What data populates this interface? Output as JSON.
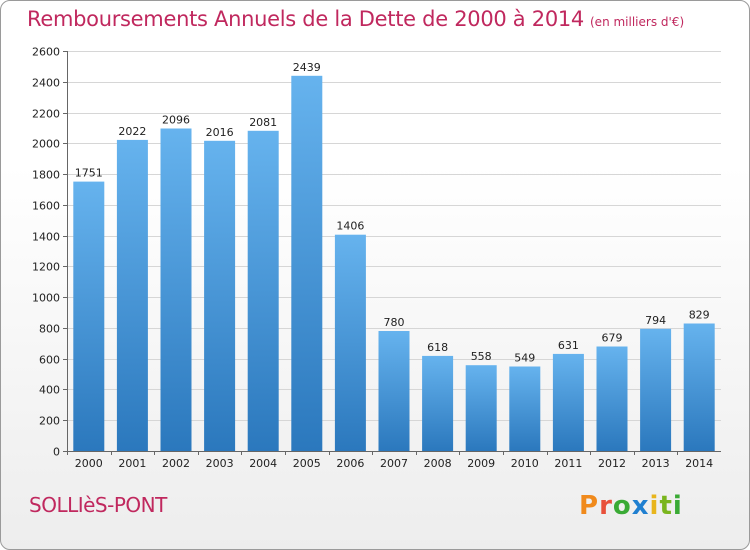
{
  "header": {
    "title": "Remboursements Annuels de la Dette de 2000 à 2014",
    "unit": "(en milliers d'€)"
  },
  "footer": {
    "commune": "SOLLIèS-PONT",
    "brand": "Proxiti"
  },
  "colors": {
    "accent": "#c0285e",
    "bar_top": "#66b3ee",
    "bar_bottom": "#2b78bd",
    "logo_letters": [
      "#f08a1c",
      "#e8503a",
      "#3aaa35",
      "#1f7fd0",
      "#e8b51c",
      "#7ab51d",
      "#3aaa35"
    ]
  },
  "chart_data": {
    "type": "bar",
    "title": "Remboursements Annuels de la Dette de 2000 à 2014",
    "subtitle": "(en milliers d'€)",
    "categories": [
      "2000",
      "2001",
      "2002",
      "2003",
      "2004",
      "2005",
      "2006",
      "2007",
      "2008",
      "2009",
      "2010",
      "2011",
      "2012",
      "2013",
      "2014"
    ],
    "values": [
      1751,
      2022,
      2096,
      2016,
      2081,
      2439,
      1406,
      780,
      618,
      558,
      549,
      631,
      679,
      794,
      829
    ],
    "data_labels": [
      "1751",
      "2022",
      "2096",
      "2016",
      "2081",
      "2439",
      "1406",
      "780",
      "618",
      "558",
      "549",
      "631",
      "679",
      "794",
      "829"
    ],
    "ylim": [
      0,
      2600
    ],
    "yticks": [
      0,
      200,
      400,
      600,
      800,
      1000,
      1200,
      1400,
      1600,
      1800,
      2000,
      2200,
      2400,
      2600
    ],
    "grid": true,
    "legend": "none"
  }
}
